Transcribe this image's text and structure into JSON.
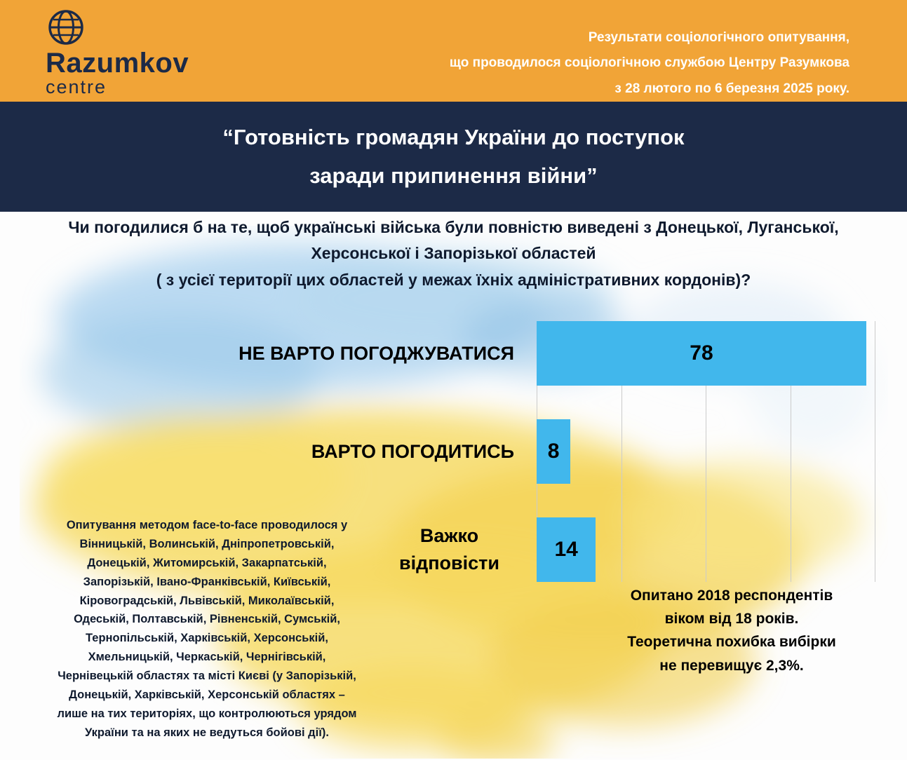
{
  "colors": {
    "header-bg": "#F1A437",
    "navy": "#1C2A47",
    "bar-blue": "#41B7EC",
    "text-dark": "#0F1A2E",
    "grid-line": "#CBCBCB",
    "map-blue": "#A5CFED",
    "map-yellow": "#F6D95F"
  },
  "header": {
    "logo_title": "Razumkov",
    "logo_subtitle": "centre",
    "note": "Результати соціологічного опитування,\nщо проводилося соціологічною службою Центру Разумкова\nз 28 лютого по 6 березня 2025 року."
  },
  "title_band": {
    "title": "“Готовність громадян України до поступок\nзаради припинення війни”"
  },
  "question": "Чи погодилися б на те, щоб українські війська були повністю виведені з Донецької, Луганської,\nХерсонської і Запорізької областей\n( з усієї території цих областей у межах їхніх адміністративних кордонів)?",
  "chart_data": {
    "type": "bar",
    "orientation": "horizontal",
    "categories": [
      "НЕ ВАРТО ПОГОДЖУВАТИСЯ",
      "ВАРТО ПОГОДИТИСЬ",
      "Важко відповісти"
    ],
    "values": [
      78,
      8,
      14
    ],
    "xlim": [
      0,
      80
    ],
    "gridlines": [
      0,
      20,
      40,
      60,
      80
    ],
    "bar_color": "#41B7EC",
    "title": "",
    "xlabel": "",
    "ylabel": "",
    "legend_position": "none"
  },
  "footnote": "Опитування методом face-to-face проводилося у\nВінницькій, Волинській, Дніпропетровській,\nДонецькій, Житомирській, Закарпатській,\nЗапорізькій, Івано-Франківській, Київській,\nКіровоградській, Львівській, Миколаївській,\nОдеській, Полтавській, Рівненській, Сумській,\nТернопільській, Харківській, Херсонській,\nХмельницькій, Черкаській, Чернігівській,\nЧернівецькій областях та місті Києві (у Запорізькій,\nДонецькій, Харківській, Херсонській областях –\nлише на тих територіях, що контролюються урядом\nУкраїни та на яких не ведуться бойові дії).",
  "sample_note": "Опитано 2018 респондентів\nвіком від 18 років.\nТеоретична похибка вибірки\nне перевищує 2,3%."
}
